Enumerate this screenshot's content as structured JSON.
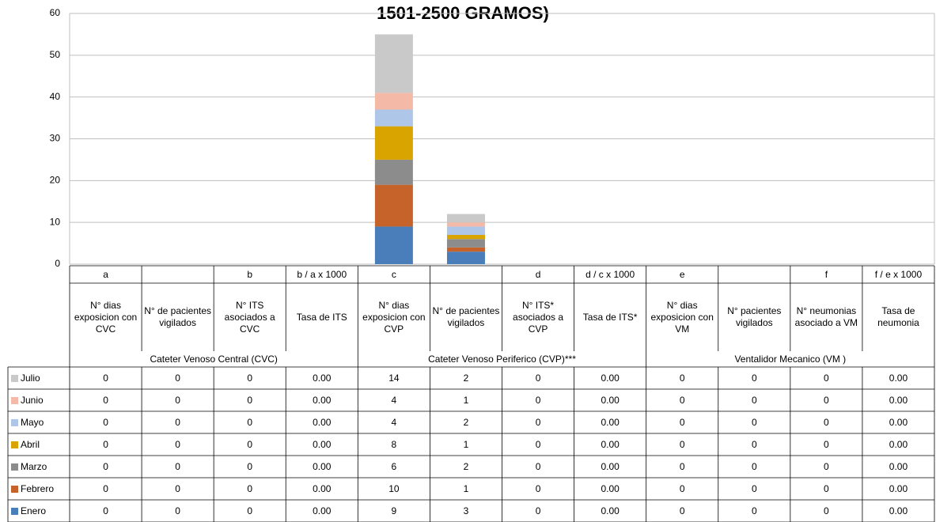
{
  "chart_data": {
    "type": "stacked_bar",
    "title": "1501-2500 GRAMOS)",
    "codes": [
      "a",
      null,
      "b",
      "b / a x 1000",
      "c",
      null,
      "d",
      "d / c x 1000",
      "e",
      null,
      "f",
      "f / e x 1000"
    ],
    "categories": [
      "N° dias exposicion con CVC",
      "N° de pacientes vigilados",
      "N° ITS asociados a CVC",
      "Tasa de ITS",
      "N° dias exposicion con CVP",
      "N° de pacientes vigilados",
      "N° ITS* asociados a CVP",
      "Tasa de ITS*",
      "N° dias exposicion con VM",
      "N° pacientes vigilados",
      "N° neumonias asociado a VM",
      "Tasa de neumonia"
    ],
    "groups": [
      "Cateter Venoso  Central (CVC)",
      "Cateter Venoso Periferico (CVP)***",
      "Ventalidor Mecanico (VM )"
    ],
    "series": [
      {
        "name": "Enero",
        "color": "#4a7ebb",
        "values": [
          0,
          0,
          0,
          0,
          9,
          3,
          0,
          0,
          0,
          0,
          0,
          0
        ],
        "value_labels": [
          "0",
          "0",
          "0",
          "0.00",
          "9",
          "3",
          "0",
          "0.00",
          "0",
          "0",
          "0",
          "0.00"
        ]
      },
      {
        "name": "Febrero",
        "color": "#c5632a",
        "values": [
          0,
          0,
          0,
          0,
          10,
          1,
          0,
          0,
          0,
          0,
          0,
          0
        ],
        "value_labels": [
          "0",
          "0",
          "0",
          "0.00",
          "10",
          "1",
          "0",
          "0.00",
          "0",
          "0",
          "0",
          "0.00"
        ]
      },
      {
        "name": "Marzo",
        "color": "#8c8c8c",
        "values": [
          0,
          0,
          0,
          0,
          6,
          2,
          0,
          0,
          0,
          0,
          0,
          0
        ],
        "value_labels": [
          "0",
          "0",
          "0",
          "0.00",
          "6",
          "2",
          "0",
          "0.00",
          "0",
          "0",
          "0",
          "0.00"
        ]
      },
      {
        "name": "Abril",
        "color": "#d9a300",
        "values": [
          0,
          0,
          0,
          0,
          8,
          1,
          0,
          0,
          0,
          0,
          0,
          0
        ],
        "value_labels": [
          "0",
          "0",
          "0",
          "0.00",
          "8",
          "1",
          "0",
          "0.00",
          "0",
          "0",
          "0",
          "0.00"
        ]
      },
      {
        "name": "Mayo",
        "color": "#aec6e8",
        "values": [
          0,
          0,
          0,
          0,
          4,
          2,
          0,
          0,
          0,
          0,
          0,
          0
        ],
        "value_labels": [
          "0",
          "0",
          "0",
          "0.00",
          "4",
          "2",
          "0",
          "0.00",
          "0",
          "0",
          "0",
          "0.00"
        ]
      },
      {
        "name": "Junio",
        "color": "#f4b9a7",
        "values": [
          0,
          0,
          0,
          0,
          4,
          1,
          0,
          0,
          0,
          0,
          0,
          0
        ],
        "value_labels": [
          "0",
          "0",
          "0",
          "0.00",
          "4",
          "1",
          "0",
          "0.00",
          "0",
          "0",
          "0",
          "0.00"
        ]
      },
      {
        "name": "Julio",
        "color": "#c9c9c9",
        "values": [
          0,
          0,
          0,
          0,
          14,
          2,
          0,
          0,
          0,
          0,
          0,
          0
        ],
        "value_labels": [
          "0",
          "0",
          "0",
          "0.00",
          "14",
          "2",
          "0",
          "0.00",
          "0",
          "0",
          "0",
          "0.00"
        ]
      }
    ],
    "ylim": [
      0,
      60
    ],
    "yticks": [
      0,
      10,
      20,
      30,
      40,
      50,
      60
    ],
    "grid": true
  }
}
